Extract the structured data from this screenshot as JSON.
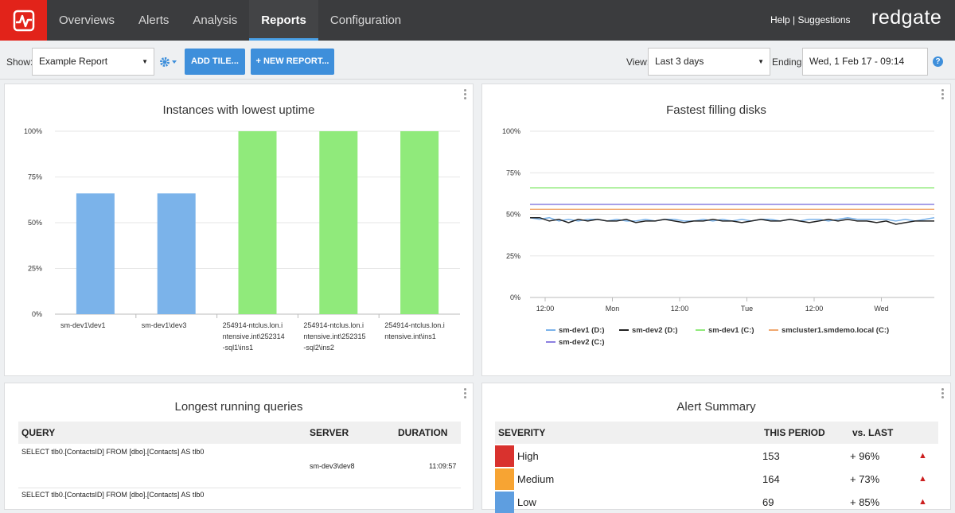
{
  "nav": {
    "logo_icon": "pulse-icon",
    "tabs": [
      {
        "label": "Overviews"
      },
      {
        "label": "Alerts"
      },
      {
        "label": "Analysis"
      },
      {
        "label": "Reports"
      },
      {
        "label": "Configuration"
      }
    ],
    "active_tab": "Reports",
    "help_link": "Help | Suggestions",
    "brand": "redgate"
  },
  "toolbar": {
    "show_label": "Show:",
    "report_select": "Example Report",
    "add_tile": "ADD TILE...",
    "new_report": "+ NEW REPORT...",
    "view_label": "View:",
    "view_select": "Last 3 days",
    "ending_label": "Ending:",
    "ending_value": "Wed, 1 Feb 17 - 09:14",
    "help_icon": "?"
  },
  "uptime_panel": {
    "title": "Instances with lowest uptime"
  },
  "disks_panel": {
    "title": "Fastest filling disks"
  },
  "queries_panel": {
    "title": "Longest running queries",
    "headers": {
      "query": "QUERY",
      "server": "SERVER",
      "duration": "DURATION"
    },
    "rows": [
      {
        "query": "SELECT tlb0.[ContactsID]  FROM [dbo].[Contacts] AS tlb0",
        "server": "sm-dev3\\dev8",
        "duration": "11:09:57"
      },
      {
        "query": "SELECT tlb0.[ContactsID]  FROM [dbo].[Contacts] AS tlb0",
        "server": "",
        "duration": ""
      }
    ]
  },
  "alerts_panel": {
    "title": "Alert Summary",
    "headers": {
      "severity": "SEVERITY",
      "this_period": "THIS PERIOD",
      "vs_last": "vs. LAST"
    },
    "rows": [
      {
        "label": "High",
        "color": "#d9322e",
        "count": "153",
        "change": "+ 96%"
      },
      {
        "label": "Medium",
        "color": "#f7a433",
        "count": "164",
        "change": "+ 73%"
      },
      {
        "label": "Low",
        "color": "#5e9ee0",
        "count": "69",
        "change": "+ 85%"
      }
    ],
    "trend_icon": "▲"
  },
  "chart_data": [
    {
      "type": "bar",
      "title": "Instances with lowest uptime",
      "categories": [
        [
          "sm-dev1\\dev1"
        ],
        [
          "sm-dev1\\dev3"
        ],
        [
          "254914-ntclus.lon.i",
          "ntensive.int\\252314",
          "-sql1\\ins1"
        ],
        [
          "254914-ntclus.lon.i",
          "ntensive.int\\252315",
          "-sql2\\ins2"
        ],
        [
          "254914-ntclus.lon.i",
          "ntensive.int\\ins1"
        ]
      ],
      "values": [
        66,
        66,
        100,
        100,
        100
      ],
      "colors": [
        "#7bb3ea",
        "#7bb3ea",
        "#90ea7b",
        "#90ea7b",
        "#90ea7b"
      ],
      "ylim": [
        0,
        100
      ],
      "yticks": [
        "0%",
        "25%",
        "50%",
        "75%",
        "100%"
      ],
      "grid": true
    },
    {
      "type": "line",
      "title": "Fastest filling disks",
      "x_ticks": [
        "12:00",
        "Mon",
        "12:00",
        "Tue",
        "12:00",
        "Wed"
      ],
      "ylim": [
        0,
        100
      ],
      "yticks": [
        "0%",
        "25%",
        "50%",
        "75%",
        "100%"
      ],
      "legend_position": "bottom",
      "series": [
        {
          "name": "sm-dev1 (D:)",
          "color": "#7bb3ea",
          "values": [
            48,
            47,
            48,
            46,
            47,
            46,
            47,
            47,
            46,
            47,
            46,
            46,
            47,
            46,
            47,
            47,
            46,
            46,
            47,
            46,
            47,
            46,
            47,
            46,
            47,
            47,
            46,
            47,
            46,
            47,
            47,
            46,
            47,
            48,
            47,
            47,
            47,
            47,
            46,
            47,
            46,
            47,
            48
          ]
        },
        {
          "name": "sm-dev2 (D:)",
          "color": "#222222",
          "values": [
            48,
            48,
            46,
            47,
            45,
            47,
            46,
            47,
            46,
            46,
            47,
            45,
            46,
            46,
            47,
            46,
            45,
            46,
            46,
            47,
            46,
            46,
            45,
            46,
            47,
            46,
            46,
            47,
            46,
            45,
            46,
            47,
            46,
            47,
            46,
            46,
            45,
            46,
            44,
            45,
            46,
            46,
            46
          ]
        },
        {
          "name": "sm-dev1 (C:)",
          "color": "#90ea7b",
          "values": [
            66,
            66
          ]
        },
        {
          "name": "smcluster1.smdemo.local (C:)",
          "color": "#f0a870",
          "values": [
            53,
            53
          ]
        },
        {
          "name": "sm-dev2 (C:)",
          "color": "#8c80e0",
          "values": [
            56,
            56
          ]
        }
      ]
    }
  ]
}
